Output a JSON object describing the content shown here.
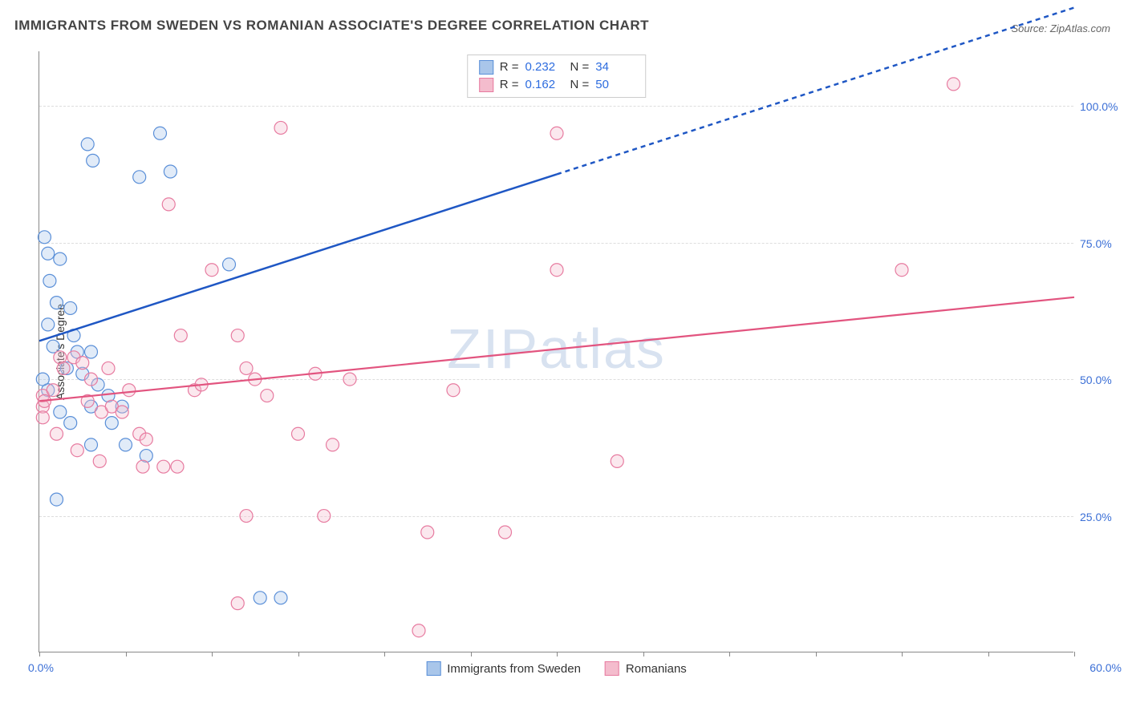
{
  "title": "IMMIGRANTS FROM SWEDEN VS ROMANIAN ASSOCIATE'S DEGREE CORRELATION CHART",
  "source": "Source: ZipAtlas.com",
  "watermark": "ZIPatlas",
  "yaxis_title": "Associate's Degree",
  "chart": {
    "type": "scatter",
    "xlim": [
      0,
      60
    ],
    "ylim": [
      0,
      110
    ],
    "x_ticks": [
      0,
      5,
      10,
      15,
      20,
      25,
      30,
      35,
      40,
      45,
      50,
      55,
      60
    ],
    "x_tick_labels": {
      "0": "0.0%",
      "60": "60.0%"
    },
    "y_gridlines": [
      25,
      50,
      75,
      100
    ],
    "y_tick_labels": {
      "25": "25.0%",
      "50": "50.0%",
      "75": "75.0%",
      "100": "100.0%"
    },
    "background_color": "#ffffff",
    "grid_color": "#dddddd",
    "axis_color": "#888888",
    "marker_radius": 8,
    "series": [
      {
        "name": "Immigrants from Sweden",
        "color_stroke": "#5a8fd8",
        "color_fill": "#a9c6ea",
        "r_value": "0.232",
        "n_value": "34",
        "trend": {
          "y0": 57,
          "y60": 118,
          "solid_until_x": 30,
          "color": "#1f57c4",
          "width": 2.5
        },
        "points": [
          [
            0.3,
            76
          ],
          [
            0.5,
            73
          ],
          [
            1.2,
            72
          ],
          [
            0.6,
            68
          ],
          [
            2.8,
            93
          ],
          [
            3.1,
            90
          ],
          [
            5.8,
            87
          ],
          [
            7.6,
            88
          ],
          [
            7.0,
            95
          ],
          [
            1.0,
            64
          ],
          [
            1.8,
            63
          ],
          [
            0.5,
            60
          ],
          [
            2.0,
            58
          ],
          [
            0.8,
            56
          ],
          [
            2.2,
            55
          ],
          [
            3.0,
            55
          ],
          [
            1.6,
            52
          ],
          [
            2.5,
            51
          ],
          [
            3.4,
            49
          ],
          [
            4.0,
            47
          ],
          [
            3.0,
            45
          ],
          [
            4.8,
            45
          ],
          [
            1.2,
            44
          ],
          [
            1.8,
            42
          ],
          [
            4.2,
            42
          ],
          [
            3.0,
            38
          ],
          [
            5.0,
            38
          ],
          [
            6.2,
            36
          ],
          [
            1.0,
            28
          ],
          [
            11.0,
            71
          ],
          [
            12.8,
            10
          ],
          [
            14.0,
            10
          ],
          [
            0.5,
            48
          ],
          [
            0.2,
            50
          ]
        ]
      },
      {
        "name": "Romanians",
        "color_stroke": "#e77ba0",
        "color_fill": "#f4bccd",
        "r_value": "0.162",
        "n_value": "50",
        "trend": {
          "y0": 46,
          "y60": 65,
          "solid_until_x": 60,
          "color": "#e2547f",
          "width": 2.2
        },
        "points": [
          [
            0.2,
            47
          ],
          [
            0.2,
            45
          ],
          [
            0.2,
            43
          ],
          [
            1.2,
            54
          ],
          [
            1.4,
            52
          ],
          [
            2.0,
            54
          ],
          [
            2.5,
            53
          ],
          [
            3.0,
            50
          ],
          [
            0.8,
            48
          ],
          [
            2.8,
            46
          ],
          [
            3.6,
            44
          ],
          [
            4.2,
            45
          ],
          [
            4.8,
            44
          ],
          [
            5.8,
            40
          ],
          [
            6.2,
            39
          ],
          [
            7.2,
            34
          ],
          [
            8.0,
            34
          ],
          [
            8.2,
            58
          ],
          [
            9.0,
            48
          ],
          [
            9.4,
            49
          ],
          [
            10.0,
            70
          ],
          [
            11.5,
            58
          ],
          [
            12.0,
            52
          ],
          [
            12.5,
            50
          ],
          [
            13.2,
            47
          ],
          [
            14.0,
            96
          ],
          [
            15.0,
            40
          ],
          [
            16.0,
            51
          ],
          [
            17.0,
            38
          ],
          [
            18.0,
            50
          ],
          [
            12.0,
            25
          ],
          [
            16.5,
            25
          ],
          [
            11.5,
            9
          ],
          [
            22.0,
            4
          ],
          [
            22.5,
            22
          ],
          [
            24.0,
            48
          ],
          [
            27.0,
            22
          ],
          [
            30.0,
            70
          ],
          [
            30.0,
            95
          ],
          [
            33.5,
            35
          ],
          [
            50.0,
            70
          ],
          [
            53.0,
            104
          ],
          [
            7.5,
            82
          ],
          [
            1.0,
            40
          ],
          [
            2.2,
            37
          ],
          [
            3.5,
            35
          ],
          [
            6.0,
            34
          ],
          [
            4.0,
            52
          ],
          [
            5.2,
            48
          ],
          [
            0.3,
            46
          ]
        ]
      }
    ]
  },
  "legend_top_labels": {
    "R": "R =",
    "N": "N ="
  },
  "legend_bottom": [
    "Immigrants from Sweden",
    "Romanians"
  ]
}
